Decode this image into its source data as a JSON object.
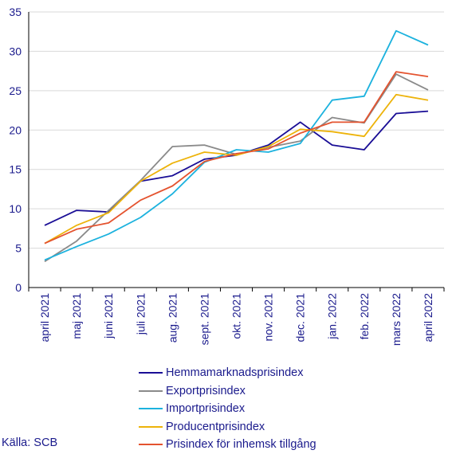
{
  "chart_data": {
    "type": "line",
    "title": "",
    "xlabel": "",
    "ylabel": "",
    "categories": [
      "april 2021",
      "maj 2021",
      "juni 2021",
      "juli 2021",
      "aug. 2021",
      "sept. 2021",
      "okt. 2021",
      "nov. 2021",
      "dec. 2021",
      "jan. 2022",
      "feb. 2022",
      "mars 2022",
      "april 2022"
    ],
    "ylim": [
      0,
      35
    ],
    "yticks": [
      0,
      5,
      10,
      15,
      20,
      25,
      30,
      35
    ],
    "grid": true,
    "legend_position": "bottom",
    "series": [
      {
        "name": "Hemmamarknadsprisindex",
        "color": "#1a0e96",
        "values": [
          7.9,
          9.8,
          9.6,
          13.5,
          14.2,
          16.3,
          16.8,
          18.1,
          21.0,
          18.1,
          17.5,
          22.1,
          22.4
        ]
      },
      {
        "name": "Exportprisindex",
        "color": "#8a8a8a",
        "values": [
          3.3,
          5.9,
          9.8,
          13.6,
          17.9,
          18.1,
          16.9,
          17.8,
          18.6,
          21.6,
          20.9,
          27.1,
          25.1
        ]
      },
      {
        "name": "Importprisindex",
        "color": "#1cb2de",
        "values": [
          3.5,
          5.2,
          6.8,
          8.9,
          11.9,
          15.9,
          17.5,
          17.2,
          18.3,
          23.8,
          24.3,
          32.6,
          30.8
        ]
      },
      {
        "name": "Producentprisindex",
        "color": "#edb30a",
        "values": [
          5.6,
          7.9,
          9.5,
          13.5,
          15.8,
          17.2,
          16.8,
          17.9,
          20.1,
          19.8,
          19.2,
          24.5,
          23.8
        ]
      },
      {
        "name": "Prisindex för inhemsk tillgång",
        "color": "#e4532f",
        "values": [
          5.6,
          7.4,
          8.2,
          11.1,
          12.9,
          16.0,
          17.0,
          17.6,
          19.6,
          21.0,
          21.0,
          27.4,
          26.8
        ]
      }
    ]
  },
  "source": "Källa: SCB",
  "colors": {
    "axis_text": "#1a1a8c",
    "grid": "#d9d9d9",
    "axis_line": "#000000"
  }
}
